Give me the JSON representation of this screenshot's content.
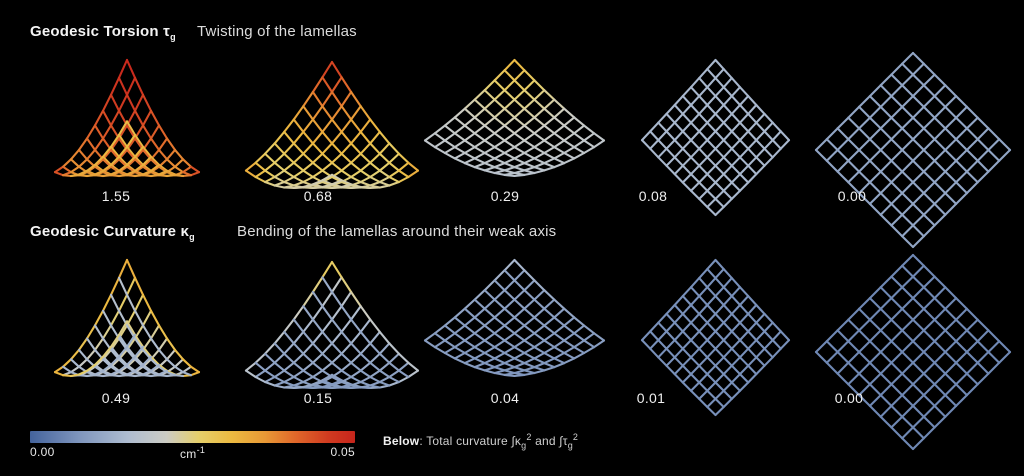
{
  "sections": [
    {
      "title": "Geodesic Torsion",
      "symbol": "τ",
      "symbol_sub": "g",
      "subtitle": "Twisting of the lamellas",
      "values": [
        "1.55",
        "0.68",
        "0.29",
        "0.08",
        "0.00"
      ]
    },
    {
      "title": "Geodesic Curvature",
      "symbol": "κ",
      "symbol_sub": "g",
      "subtitle": "Bending of the lamellas around their weak axis",
      "values": [
        "0.49",
        "0.15",
        "0.04",
        "0.01",
        "0.00"
      ]
    }
  ],
  "colorbar": {
    "min_label": "0.00",
    "max_label": "0.05",
    "unit": "cm",
    "unit_sup": "-1",
    "gradient": [
      [
        0.0,
        "#44639c"
      ],
      [
        0.15,
        "#7e95bd"
      ],
      [
        0.3,
        "#aebcd0"
      ],
      [
        0.42,
        "#ccccc4"
      ],
      [
        0.52,
        "#e5cf6a"
      ],
      [
        0.62,
        "#ecba41"
      ],
      [
        0.72,
        "#e89a36"
      ],
      [
        0.82,
        "#e0662a"
      ],
      [
        0.92,
        "#d03a20"
      ],
      [
        1.0,
        "#c6251c"
      ]
    ]
  },
  "note": {
    "prefix": "Below",
    "body": ": Total curvature ",
    "term1_int": "∫κ",
    "term1_sub": "g",
    "term1_sup": "2",
    "conj": " and ",
    "term2_int": "∫τ",
    "term2_sub": "g",
    "term2_sup": "2"
  },
  "background_color": "#000000"
}
